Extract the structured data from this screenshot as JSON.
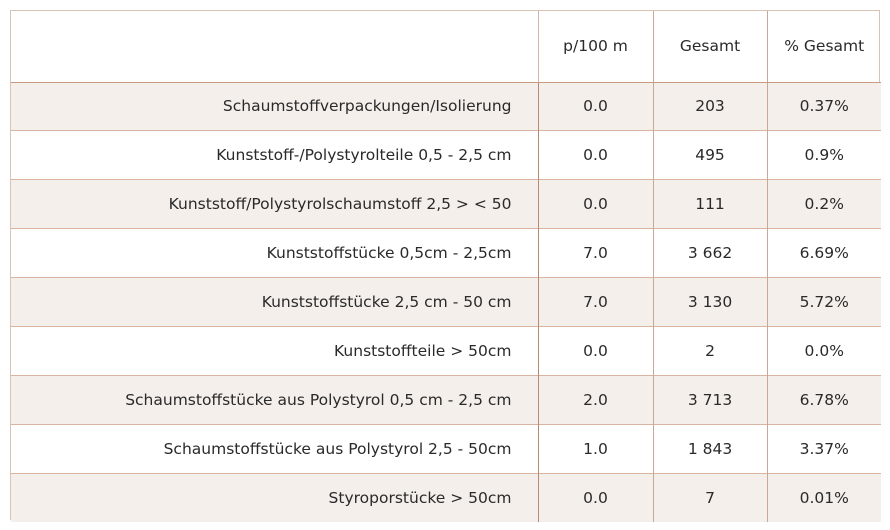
{
  "table": {
    "headers": [
      "",
      "p/100 m",
      "Gesamt",
      "% Gesamt"
    ],
    "rows": [
      {
        "label": "Schaumstoffverpackungen/Isolierung",
        "p100m": "0.0",
        "total": "203",
        "pct": "0.37%"
      },
      {
        "label": "Kunststoff-/Polystyrolteile 0,5 - 2,5 cm",
        "p100m": "0.0",
        "total": "495",
        "pct": "0.9%"
      },
      {
        "label": "Kunststoff/Polystyrolschaumstoff 2,5 > < 50",
        "p100m": "0.0",
        "total": "111",
        "pct": "0.2%"
      },
      {
        "label": "Kunststoffstücke 0,5cm - 2,5cm",
        "p100m": "7.0",
        "total": "3 662",
        "pct": "6.69%"
      },
      {
        "label": "Kunststoffstücke 2,5 cm - 50 cm",
        "p100m": "7.0",
        "total": "3 130",
        "pct": "5.72%"
      },
      {
        "label": "Kunststoffteile > 50cm",
        "p100m": "0.0",
        "total": "2",
        "pct": "0.0%"
      },
      {
        "label": "Schaumstoffstücke aus Polystyrol 0,5 cm - 2,5 cm",
        "p100m": "2.0",
        "total": "3 713",
        "pct": "6.78%"
      },
      {
        "label": "Schaumstoffstücke aus Polystyrol 2,5 - 50cm",
        "p100m": "1.0",
        "total": "1 843",
        "pct": "3.37%"
      },
      {
        "label": "Styroporstücke > 50cm",
        "p100m": "0.0",
        "total": "7",
        "pct": "0.01%"
      }
    ]
  },
  "colors": {
    "row_stripe": "#f5efeb",
    "grid_line": "#c59c82",
    "text": "#2a2a2a"
  }
}
